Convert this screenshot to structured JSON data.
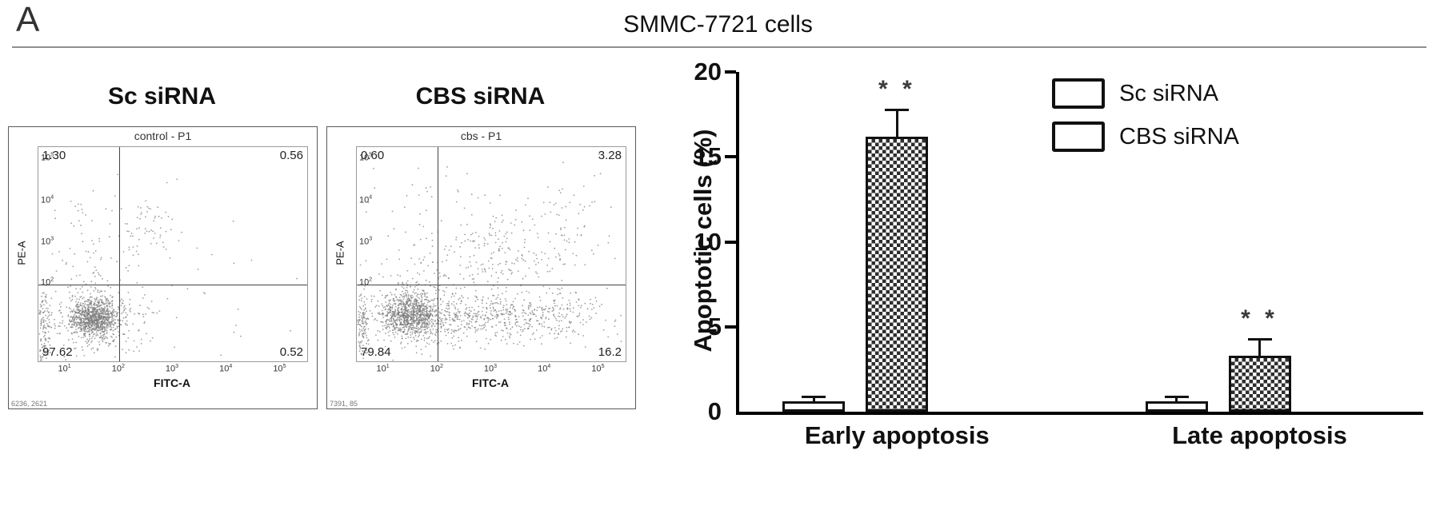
{
  "panel": {
    "label": "A",
    "title": "SMMC-7721 cells"
  },
  "chart_data": [
    {
      "type": "scatter",
      "variant": "flow-cytometry",
      "title": "Sc siRNA",
      "gate_label": "control - P1",
      "xlabel": "FITC-A",
      "ylabel": "PE-A",
      "x_ticks": [
        "10^1",
        "10^2",
        "10^3",
        "10^4",
        "10^5"
      ],
      "y_ticks": [
        "10^5",
        "10^4",
        "10^3",
        "10^2"
      ],
      "quadrants": {
        "top_left": "1.30",
        "top_right": "0.56",
        "bottom_left": "97.62",
        "bottom_right": "0.52"
      },
      "corner_text": "6236, 2621",
      "clusters": [
        {
          "x": 0.21,
          "y": 0.8,
          "sx": 0.045,
          "sy": 0.045,
          "n": 900
        },
        {
          "x": 0.21,
          "y": 0.8,
          "sx": 0.09,
          "sy": 0.09,
          "n": 260
        },
        {
          "x": 0.02,
          "y": 0.84,
          "sx": 0.012,
          "sy": 0.1,
          "n": 140
        },
        {
          "x": 0.22,
          "y": 0.5,
          "sx": 0.1,
          "sy": 0.16,
          "n": 90
        },
        {
          "x": 0.4,
          "y": 0.38,
          "sx": 0.05,
          "sy": 0.07,
          "n": 45
        },
        {
          "x": 0.55,
          "y": 0.55,
          "sx": 0.18,
          "sy": 0.25,
          "n": 35
        }
      ]
    },
    {
      "type": "scatter",
      "variant": "flow-cytometry",
      "title": "CBS siRNA",
      "gate_label": "cbs - P1",
      "xlabel": "FITC-A",
      "ylabel": "PE-A",
      "x_ticks": [
        "10^1",
        "10^2",
        "10^3",
        "10^4",
        "10^5"
      ],
      "y_ticks": [
        "10^5",
        "10^4",
        "10^3",
        "10^2"
      ],
      "quadrants": {
        "top_left": "0.60",
        "top_right": "3.28",
        "bottom_left": "79.84",
        "bottom_right": "16.2"
      },
      "corner_text": "7391, 85",
      "clusters": [
        {
          "x": 0.2,
          "y": 0.78,
          "sx": 0.05,
          "sy": 0.05,
          "n": 800
        },
        {
          "x": 0.22,
          "y": 0.78,
          "sx": 0.1,
          "sy": 0.09,
          "n": 300
        },
        {
          "x": 0.45,
          "y": 0.8,
          "sx": 0.15,
          "sy": 0.055,
          "n": 350
        },
        {
          "x": 0.7,
          "y": 0.78,
          "sx": 0.12,
          "sy": 0.06,
          "n": 220
        },
        {
          "x": 0.55,
          "y": 0.5,
          "sx": 0.13,
          "sy": 0.13,
          "n": 170
        },
        {
          "x": 0.3,
          "y": 0.45,
          "sx": 0.15,
          "sy": 0.18,
          "n": 120
        },
        {
          "x": 0.02,
          "y": 0.84,
          "sx": 0.012,
          "sy": 0.1,
          "n": 130
        },
        {
          "x": 0.8,
          "y": 0.35,
          "sx": 0.08,
          "sy": 0.12,
          "n": 60
        }
      ]
    },
    {
      "type": "bar",
      "title": "",
      "categories": [
        "Early apoptosis",
        "Late apoptosis"
      ],
      "series": [
        {
          "name": "Sc siRNA",
          "values": [
            0.6,
            0.6
          ],
          "errors": [
            0.2,
            0.2
          ],
          "fill": "white",
          "significance": [
            "",
            ""
          ]
        },
        {
          "name": "CBS siRNA",
          "values": [
            16.2,
            3.3
          ],
          "errors": [
            1.5,
            0.9
          ],
          "fill": "checker",
          "significance": [
            "* *",
            "* *"
          ]
        }
      ],
      "ylabel": "Apoptotic cells (%)",
      "ylim": [
        0,
        20
      ],
      "yticks": [
        0,
        5,
        10,
        15,
        20
      ],
      "legend_position": "top-right",
      "grid": false
    }
  ]
}
